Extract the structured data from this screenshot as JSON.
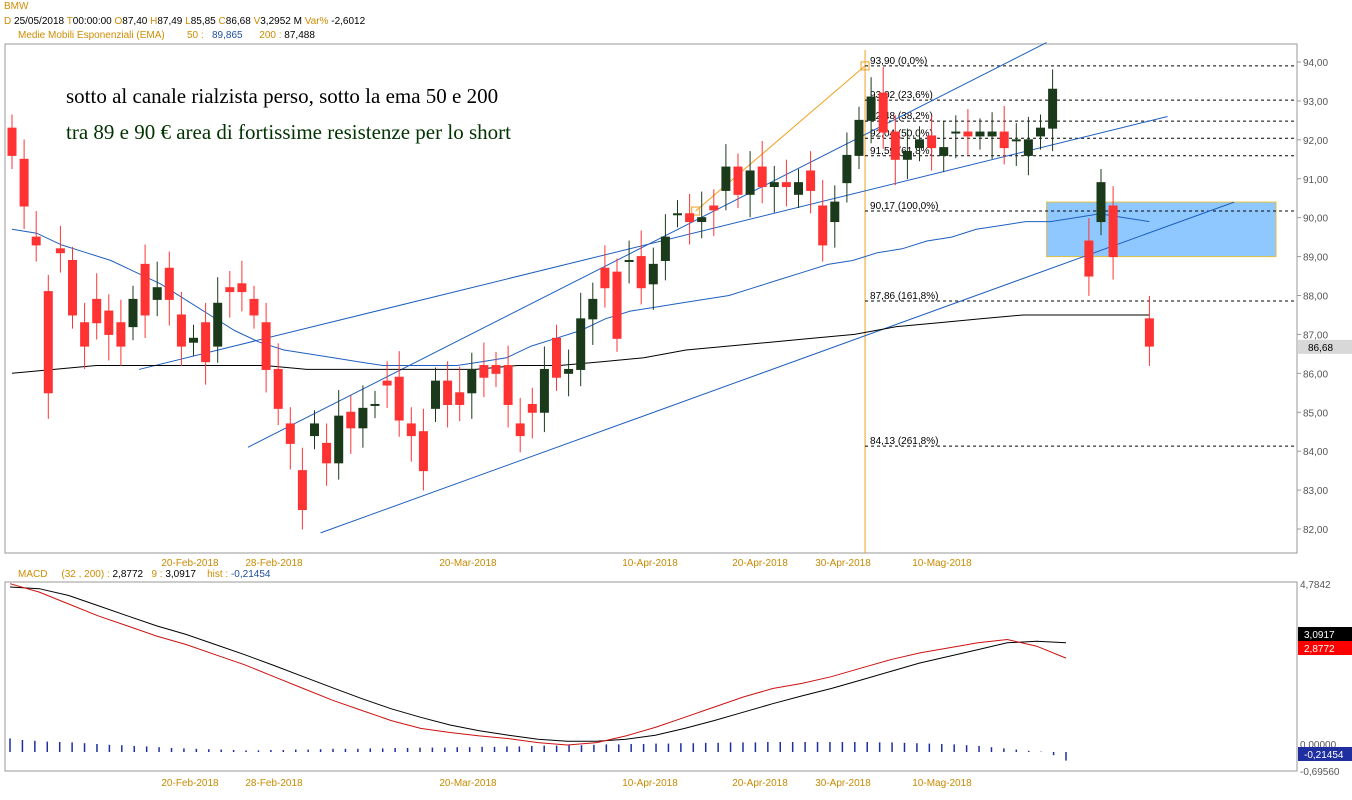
{
  "header": {
    "symbol": "BMW",
    "date_key": "D",
    "date": "25/05/2018",
    "time_key": "T",
    "time": "00:00:00",
    "open_key": "O",
    "open": "87,40",
    "high_key": "H",
    "high": "87,49",
    "low_key": "L",
    "low": "85,85",
    "close_key": "C",
    "close": "86,68",
    "volume_key": "V",
    "volume": "3,2952 M",
    "var_key": "Var%",
    "var": "-2,6012",
    "ema_label": "Medie Mobili Esponenziali (EMA)",
    "ema50_label": "50 :",
    "ema50_value": "89,865",
    "ema200_label": "200 :",
    "ema200_value": "87,488"
  },
  "annotations": {
    "line1": "sotto al canale rialzista perso, sotto la ema 50 e 200",
    "line2": "tra 89 e 90 € area di fortissime resistenze per lo short"
  },
  "macd_header": {
    "label": "MACD",
    "params": "(32 , 200) :",
    "macd_value": "2,8772",
    "signal_label": "9 :",
    "signal_value": "3,0917",
    "hist_label": "hist :",
    "hist_value": "-0,21454"
  },
  "chart_data": [
    {
      "type": "candlestick",
      "ylim": [
        81.7,
        94.3
      ],
      "y_ticks": [
        "82,00",
        "83,00",
        "84,00",
        "85,00",
        "86,00",
        "87,00",
        "88,00",
        "89,00",
        "90,00",
        "91,00",
        "92,00",
        "93,00",
        "94,00"
      ],
      "x_tick_labels": [
        "20-Feb-2018",
        "28-Feb-2018",
        "20-Mar-2018",
        "10-Apr-2018",
        "20-Apr-2018",
        "30-Apr-2018",
        "10-Mag-2018"
      ],
      "last_price_label": "86,68",
      "candles": [
        [
          92.3,
          91.6
        ],
        [
          91.5,
          90.3
        ],
        [
          89.5,
          89.3
        ],
        [
          88.1,
          85.5
        ],
        [
          89.2,
          89.1
        ],
        [
          88.9,
          87.5
        ],
        [
          87.3,
          86.7
        ],
        [
          87.9,
          87.3
        ],
        [
          87.6,
          87.0
        ],
        [
          87.3,
          86.7
        ],
        [
          87.2,
          87.9
        ],
        [
          88.8,
          87.5
        ],
        [
          87.9,
          88.2
        ],
        [
          88.7,
          87.9
        ],
        [
          87.5,
          86.7
        ],
        [
          86.8,
          86.9
        ],
        [
          87.3,
          86.3
        ],
        [
          86.7,
          87.8
        ],
        [
          88.2,
          88.1
        ],
        [
          88.3,
          88.1
        ],
        [
          87.9,
          87.5
        ],
        [
          87.3,
          86.1
        ],
        [
          86.1,
          85.1
        ],
        [
          84.7,
          84.2
        ],
        [
          83.5,
          82.5
        ],
        [
          84.4,
          84.7
        ],
        [
          84.2,
          83.7
        ],
        [
          83.7,
          84.9
        ],
        [
          85.0,
          84.6
        ],
        [
          84.6,
          85.1
        ],
        [
          85.2,
          85.2
        ],
        [
          85.8,
          85.7
        ],
        [
          85.9,
          84.8
        ],
        [
          84.7,
          84.4
        ],
        [
          84.5,
          83.5
        ],
        [
          85.1,
          85.8
        ],
        [
          85.8,
          85.2
        ],
        [
          85.5,
          85.2
        ],
        [
          85.5,
          86.1
        ],
        [
          86.2,
          85.9
        ],
        [
          86.2,
          86.0
        ],
        [
          86.2,
          85.2
        ],
        [
          84.7,
          84.4
        ],
        [
          85.2,
          85.0
        ],
        [
          85.0,
          86.1
        ],
        [
          86.9,
          85.9
        ],
        [
          86.0,
          86.1
        ],
        [
          86.1,
          87.4
        ],
        [
          87.4,
          87.9
        ],
        [
          88.7,
          88.2
        ],
        [
          88.6,
          86.9
        ],
        [
          88.9,
          88.9
        ],
        [
          89.0,
          88.2
        ],
        [
          88.3,
          88.8
        ],
        [
          88.9,
          89.5
        ],
        [
          90.1,
          90.1
        ],
        [
          90.1,
          89.9
        ],
        [
          89.9,
          90.0
        ],
        [
          90.3,
          90.2
        ],
        [
          90.7,
          91.3
        ],
        [
          91.3,
          90.6
        ],
        [
          90.6,
          91.2
        ],
        [
          91.3,
          90.8
        ],
        [
          90.8,
          90.9
        ],
        [
          90.9,
          90.8
        ],
        [
          90.6,
          90.9
        ],
        [
          91.2,
          90.7
        ],
        [
          90.3,
          89.3
        ],
        [
          89.9,
          90.4
        ],
        [
          90.9,
          91.6
        ],
        [
          91.6,
          92.5
        ],
        [
          92.5,
          93.1
        ],
        [
          93.2,
          92.2
        ],
        [
          92.2,
          91.5
        ],
        [
          91.5,
          91.7
        ],
        [
          91.8,
          92.0
        ],
        [
          92.1,
          91.8
        ],
        [
          91.6,
          91.8
        ],
        [
          92.2,
          92.2
        ],
        [
          92.2,
          92.1
        ],
        [
          92.1,
          92.2
        ],
        [
          92.1,
          92.2
        ],
        [
          92.2,
          91.8
        ],
        [
          92.0,
          92.0
        ],
        [
          91.6,
          92.0
        ],
        [
          92.1,
          92.3
        ],
        [
          92.3,
          93.3
        ],
        [
          null,
          null
        ],
        [
          null,
          null
        ],
        [
          89.4,
          88.5
        ],
        [
          89.9,
          90.9
        ],
        [
          90.3,
          89.0
        ],
        [
          null,
          null
        ],
        [
          null,
          null
        ],
        [
          87.4,
          86.7
        ]
      ],
      "ema50": [
        89.7,
        89.6,
        89.3,
        89.1,
        88.9,
        88.6,
        88.3,
        87.9,
        87.5,
        87.1,
        86.8,
        86.6,
        86.5,
        86.4,
        86.3,
        86.2,
        86.2,
        86.2,
        86.2,
        86.3,
        86.4,
        86.7,
        86.9,
        87.1,
        87.4,
        87.6,
        87.7,
        87.8,
        87.9,
        88.0,
        88.2,
        88.4,
        88.6,
        88.8,
        88.9,
        89.1,
        89.2,
        89.4,
        89.5,
        89.7,
        89.8,
        89.9,
        89.9,
        90.0,
        90.1,
        90.0,
        89.9
      ],
      "ema200": [
        86.0,
        86.1,
        86.2,
        86.2,
        86.2,
        86.2,
        86.2,
        86.1,
        86.1,
        86.1,
        86.1,
        86.1,
        86.2,
        86.2,
        86.3,
        86.4,
        86.6,
        86.7,
        86.8,
        86.9,
        87.0,
        87.2,
        87.3,
        87.4,
        87.5,
        87.5,
        87.5,
        87.5
      ],
      "channel": {
        "upper": [
          [
            91.5,
            86.3
          ],
          [
            37.5,
            94.4
          ]
        ],
        "lower": [
          [
            91.5,
            82.2
          ],
          [
            37.5,
            90.4
          ]
        ],
        "middle": [
          [
            40.5,
            85.2
          ],
          [
            104,
            92.5
          ]
        ]
      },
      "fibonacci": {
        "levels": [
          {
            "label": "93,90 (0,0%)",
            "value": 93.9
          },
          {
            "label": "93,02 (23,6%)",
            "value": 93.02
          },
          {
            "label": "92,48 (38,2%)",
            "value": 92.48
          },
          {
            "label": "92,04 (50,0%)",
            "value": 92.04
          },
          {
            "label": "91,59 (61,8%)",
            "value": 91.59
          },
          {
            "label": "90,17 (100,0%)",
            "value": 90.17
          },
          {
            "label": "87,86 (161,8%)",
            "value": 87.86
          },
          {
            "label": "84,13 (261,8%)",
            "value": 84.13
          }
        ]
      },
      "resistance_zone": [
        89.0,
        90.4
      ],
      "colors": {
        "up": "#1b3a1b",
        "down": "#ff3333",
        "ema50": "#1f5fbf",
        "ema200": "#000000",
        "channel": "#1f5fbf",
        "fib_swing": "#f0a020",
        "zone": "#8fc8ff"
      }
    },
    {
      "type": "line",
      "name": "MACD",
      "ylim": [
        -0.69,
        4.79
      ],
      "y_ticks": [
        "4,7842",
        "0,00000",
        "-0,69560"
      ],
      "signal_label_value": "3,0917",
      "macd_label_value": "2,8772",
      "hist_label_value": "-0,21454",
      "macd": [
        4.8,
        4.55,
        4.2,
        3.85,
        3.55,
        3.25,
        3.0,
        2.7,
        2.4,
        2.05,
        1.7,
        1.35,
        1.05,
        0.75,
        0.52,
        0.4,
        0.3,
        0.22,
        0.1,
        0.03,
        0.1,
        0.3,
        0.55,
        0.85,
        1.15,
        1.45,
        1.7,
        1.85,
        2.05,
        2.3,
        2.55,
        2.75,
        2.9,
        3.05,
        3.15,
        2.95,
        2.6
      ],
      "signal": [
        4.7,
        4.65,
        4.45,
        4.15,
        3.85,
        3.55,
        3.3,
        3.0,
        2.7,
        2.38,
        2.05,
        1.72,
        1.4,
        1.1,
        0.85,
        0.62,
        0.45,
        0.32,
        0.2,
        0.14,
        0.14,
        0.2,
        0.32,
        0.52,
        0.75,
        1.0,
        1.25,
        1.48,
        1.7,
        1.95,
        2.2,
        2.45,
        2.65,
        2.85,
        3.05,
        3.1,
        3.05
      ],
      "hist": [
        0.34,
        0.3,
        0.28,
        0.26,
        0.25,
        0.24,
        0.22,
        0.2,
        0.18,
        0.17,
        0.15,
        0.14,
        0.12,
        0.1,
        0.09,
        0.08,
        0.07,
        0.06,
        0.05,
        0.04,
        0.04,
        0.05,
        0.05,
        0.06,
        0.06,
        0.07,
        0.08,
        0.08,
        0.08,
        0.09,
        0.09,
        0.1,
        0.1,
        0.11,
        0.11,
        0.11,
        0.12,
        0.12,
        0.13,
        0.13,
        0.14,
        0.14,
        0.15,
        0.16,
        0.16,
        0.17,
        0.17,
        0.18,
        0.19,
        0.19,
        0.2,
        0.2,
        0.21,
        0.21,
        0.22,
        0.22,
        0.23,
        0.23,
        0.24,
        0.24,
        0.24,
        0.25,
        0.25,
        0.25,
        0.25,
        0.25,
        0.25,
        0.25,
        0.25,
        0.25,
        0.24,
        0.24,
        0.23,
        0.22,
        0.21,
        0.2,
        0.19,
        0.17,
        0.15,
        0.12,
        0.09,
        0.06,
        0.03,
        0.01,
        -0.08,
        -0.21454
      ],
      "colors": {
        "macd": "#cc1111",
        "signal": "#000000",
        "hist": "#1f2fa0"
      }
    }
  ]
}
